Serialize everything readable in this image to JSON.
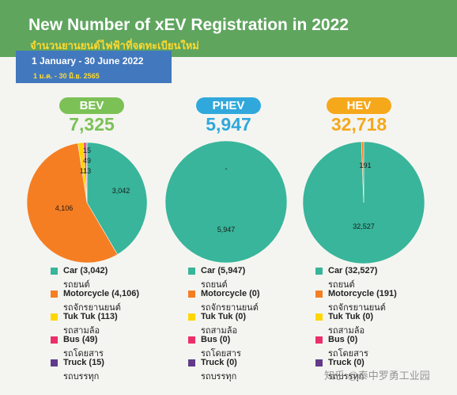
{
  "header": {
    "title": "New Number of xEV Registration in 2022",
    "subtitle_th": "จำนวนยานยนต์ไฟฟ้าที่จดทะเบียนใหม่",
    "date_en": "1 January - 30 June 2022",
    "date_th": "1 ม.ค. - 30 มิ.ย. 2565"
  },
  "colors": {
    "banner": "#5fa55e",
    "date_box": "#4278be",
    "car": "#38b59a",
    "motorcycle": "#f57e23",
    "tuktuk": "#ffd600",
    "bus": "#ea2f6a",
    "truck": "#623a8a"
  },
  "chart_data": [
    {
      "type": "pie",
      "label": "BEV",
      "total": "7,325",
      "label_color": "#7cc156",
      "slices": [
        {
          "name": "Car",
          "value": 3042,
          "label": "3,042",
          "color": "#38b59a"
        },
        {
          "name": "Motorcycle",
          "value": 4106,
          "label": "4,106",
          "color": "#f57e23"
        },
        {
          "name": "Tuk Tuk",
          "value": 113,
          "label": "113",
          "color": "#ffd600"
        },
        {
          "name": "Bus",
          "value": 49,
          "label": "49",
          "color": "#ea2f6a"
        },
        {
          "name": "Truck",
          "value": 15,
          "label": "15",
          "color": "#623a8a"
        }
      ],
      "legend": [
        {
          "en": "Car (3,042)",
          "th": "รถยนต์",
          "color": "#38b59a"
        },
        {
          "en": "Motorcycle (4,106)",
          "th": "รถจักรยานยนต์",
          "color": "#f57e23"
        },
        {
          "en": "Tuk Tuk (113)",
          "th": "รถสามล้อ",
          "color": "#ffd600"
        },
        {
          "en": "Bus (49)",
          "th": "รถโดยสาร",
          "color": "#ea2f6a"
        },
        {
          "en": "Truck (15)",
          "th": "รถบรรทุก",
          "color": "#623a8a"
        }
      ]
    },
    {
      "type": "pie",
      "label": "PHEV",
      "total": "5,947",
      "label_color": "#30a8dc",
      "slices": [
        {
          "name": "Car",
          "value": 5947,
          "label": "5,947",
          "color": "#38b59a"
        },
        {
          "name": "Motorcycle",
          "value": 0,
          "label": "-",
          "color": "#f57e23"
        }
      ],
      "legend": [
        {
          "en": "Car (5,947)",
          "th": "รถยนต์",
          "color": "#38b59a"
        },
        {
          "en": "Motorcycle (0)",
          "th": "รถจักรยานยนต์",
          "color": "#f57e23"
        },
        {
          "en": "Tuk Tuk (0)",
          "th": "รถสามล้อ",
          "color": "#ffd600"
        },
        {
          "en": "Bus (0)",
          "th": "รถโดยสาร",
          "color": "#ea2f6a"
        },
        {
          "en": "Truck (0)",
          "th": "รถบรรทุก",
          "color": "#623a8a"
        }
      ]
    },
    {
      "type": "pie",
      "label": "HEV",
      "total": "32,718",
      "label_color": "#f6a81b",
      "slices": [
        {
          "name": "Car",
          "value": 32527,
          "label": "32,527",
          "color": "#38b59a"
        },
        {
          "name": "Motorcycle",
          "value": 191,
          "label": "191",
          "color": "#f57e23"
        }
      ],
      "legend": [
        {
          "en": "Car (32,527)",
          "th": "รถยนต์",
          "color": "#38b59a"
        },
        {
          "en": "Motorcycle (191)",
          "th": "รถจักรยานยนต์",
          "color": "#f57e23"
        },
        {
          "en": "Tuk Tuk (0)",
          "th": "รถสามล้อ",
          "color": "#ffd600"
        },
        {
          "en": "Bus (0)",
          "th": "รถโดยสาร",
          "color": "#ea2f6a"
        },
        {
          "en": "Truck (0)",
          "th": "รถบรรทุก",
          "color": "#623a8a"
        }
      ]
    }
  ],
  "watermark": "知乎 @泰中罗勇工业园"
}
